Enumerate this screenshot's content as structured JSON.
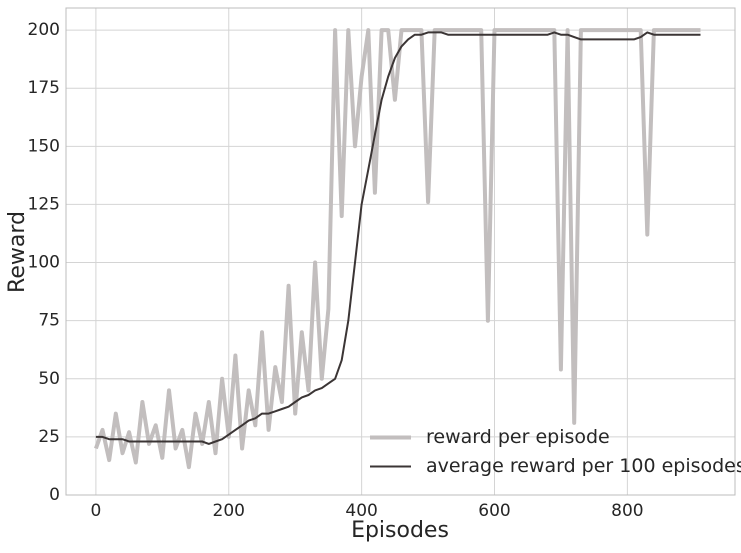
{
  "chart_data": {
    "type": "line",
    "x_label": "Episodes",
    "y_label": "Reward",
    "x": [
      0,
      10,
      20,
      30,
      40,
      50,
      60,
      70,
      80,
      90,
      100,
      110,
      120,
      130,
      140,
      150,
      160,
      170,
      180,
      190,
      200,
      210,
      220,
      230,
      240,
      250,
      260,
      270,
      280,
      290,
      300,
      310,
      320,
      330,
      340,
      350,
      360,
      370,
      380,
      390,
      400,
      410,
      420,
      430,
      440,
      450,
      460,
      470,
      480,
      490,
      500,
      510,
      520,
      530,
      540,
      550,
      560,
      570,
      580,
      590,
      600,
      610,
      620,
      630,
      640,
      650,
      660,
      670,
      680,
      690,
      700,
      710,
      720,
      730,
      740,
      750,
      760,
      770,
      780,
      790,
      800,
      810,
      820,
      830,
      840,
      850,
      860,
      870,
      880,
      890,
      900,
      910
    ],
    "series": [
      {
        "name": "reward per episode",
        "color": "#c2bebe",
        "width": 4,
        "values": [
          20,
          28,
          15,
          35,
          18,
          27,
          14,
          40,
          22,
          30,
          16,
          45,
          20,
          28,
          12,
          35,
          22,
          40,
          18,
          50,
          25,
          60,
          20,
          45,
          30,
          70,
          28,
          55,
          40,
          90,
          35,
          70,
          45,
          100,
          50,
          80,
          200,
          120,
          200,
          150,
          180,
          200,
          130,
          200,
          200,
          170,
          200,
          200,
          200,
          200,
          126,
          200,
          200,
          200,
          200,
          200,
          200,
          200,
          200,
          75,
          200,
          200,
          200,
          200,
          200,
          200,
          200,
          200,
          200,
          200,
          54,
          200,
          31,
          200,
          200,
          200,
          200,
          200,
          200,
          200,
          200,
          200,
          200,
          112,
          200,
          200,
          200,
          200,
          200,
          200,
          200,
          200
        ]
      },
      {
        "name": "average reward per 100 episodes",
        "color": "#3b3535",
        "width": 2,
        "values": [
          25,
          25,
          24,
          24,
          24,
          23,
          23,
          23,
          23,
          23,
          23,
          23,
          23,
          23,
          23,
          23,
          23,
          22,
          23,
          24,
          26,
          28,
          30,
          32,
          33,
          35,
          35,
          36,
          37,
          38,
          40,
          42,
          43,
          45,
          46,
          48,
          50,
          58,
          75,
          100,
          125,
          140,
          155,
          170,
          180,
          188,
          193,
          196,
          198,
          198,
          199,
          199,
          199,
          198,
          198,
          198,
          198,
          198,
          198,
          198,
          198,
          198,
          198,
          198,
          198,
          198,
          198,
          198,
          198,
          199,
          198,
          198,
          197,
          196,
          196,
          196,
          196,
          196,
          196,
          196,
          196,
          196,
          197,
          199,
          198,
          198,
          198,
          198,
          198,
          198,
          198,
          198
        ]
      }
    ],
    "xlim": [
      -45,
      962
    ],
    "ylim": [
      0,
      209.5
    ],
    "xticks": [
      0,
      200,
      400,
      600,
      800
    ],
    "yticks": [
      0,
      25,
      50,
      75,
      100,
      125,
      150,
      175,
      200
    ],
    "grid": true,
    "legend": "lower right"
  }
}
